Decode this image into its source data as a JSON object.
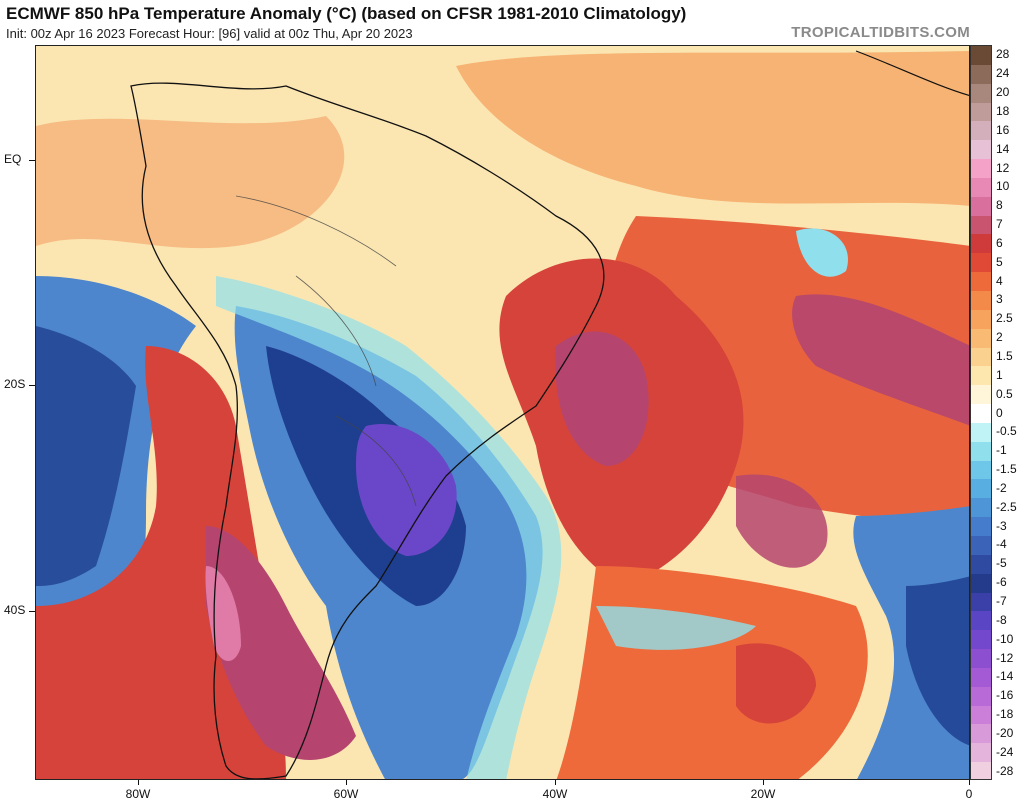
{
  "header": {
    "title": "ECMWF 850 hPa Temperature Anomaly (°C) (based on CFSR 1981-2010 Climatology)",
    "subtitle": "Init: 00z Apr 16 2023   Forecast Hour: [96]   valid at 00z Thu, Apr 20 2023",
    "credit": "TROPICALTIDBITS.COM"
  },
  "map": {
    "lat_labels": [
      "EQ",
      "20S",
      "40S"
    ],
    "lon_labels": [
      "80W",
      "60W",
      "40W",
      "20W",
      "0"
    ],
    "colors": {
      "land_border": "#111111",
      "pale": "#fbe6b2",
      "warm_orange": "#f4a35e",
      "warm_red": "#d6433a",
      "hot_magenta": "#b5456f",
      "hot_pink": "#e07aa6",
      "cool_cyan": "#8fe0ec",
      "cool_blue": "#4d86cc",
      "deep_blue": "#1e3f8f",
      "purple": "#6a47c9"
    }
  },
  "colorbar": {
    "levels": [
      "28",
      "24",
      "20",
      "18",
      "16",
      "14",
      "12",
      "10",
      "8",
      "7",
      "6",
      "5",
      "4",
      "3",
      "2.5",
      "2",
      "1.5",
      "1",
      "0.5",
      "0",
      "-0.5",
      "-1",
      "-1.5",
      "-2",
      "-2.5",
      "-3",
      "-4",
      "-5",
      "-6",
      "-7",
      "-8",
      "-10",
      "-12",
      "-14",
      "-16",
      "-18",
      "-20",
      "-24",
      "-28"
    ],
    "colors": [
      "#6b4a35",
      "#8c6b5a",
      "#a8877c",
      "#bf9c9a",
      "#d3aebb",
      "#e7c2d6",
      "#f4a2c8",
      "#e889b5",
      "#d86f9c",
      "#c8546f",
      "#cf3b3b",
      "#e04935",
      "#ee6a3a",
      "#f38a4a",
      "#f7a35e",
      "#f9bb73",
      "#fbd18f",
      "#fde7ae",
      "#fff5d9",
      "#ffffff",
      "#bff3f6",
      "#8fe0ec",
      "#6ec7e8",
      "#58aee0",
      "#4d95d6",
      "#457dcc",
      "#3b63b8",
      "#2f4ba1",
      "#243a8a",
      "#3b3fa8",
      "#5a45c4",
      "#7448cc",
      "#8b4fd0",
      "#a35ad4",
      "#b86bd6",
      "#cc7fd8",
      "#d99ad9",
      "#e5b4dc",
      "#f0cfe0"
    ]
  }
}
